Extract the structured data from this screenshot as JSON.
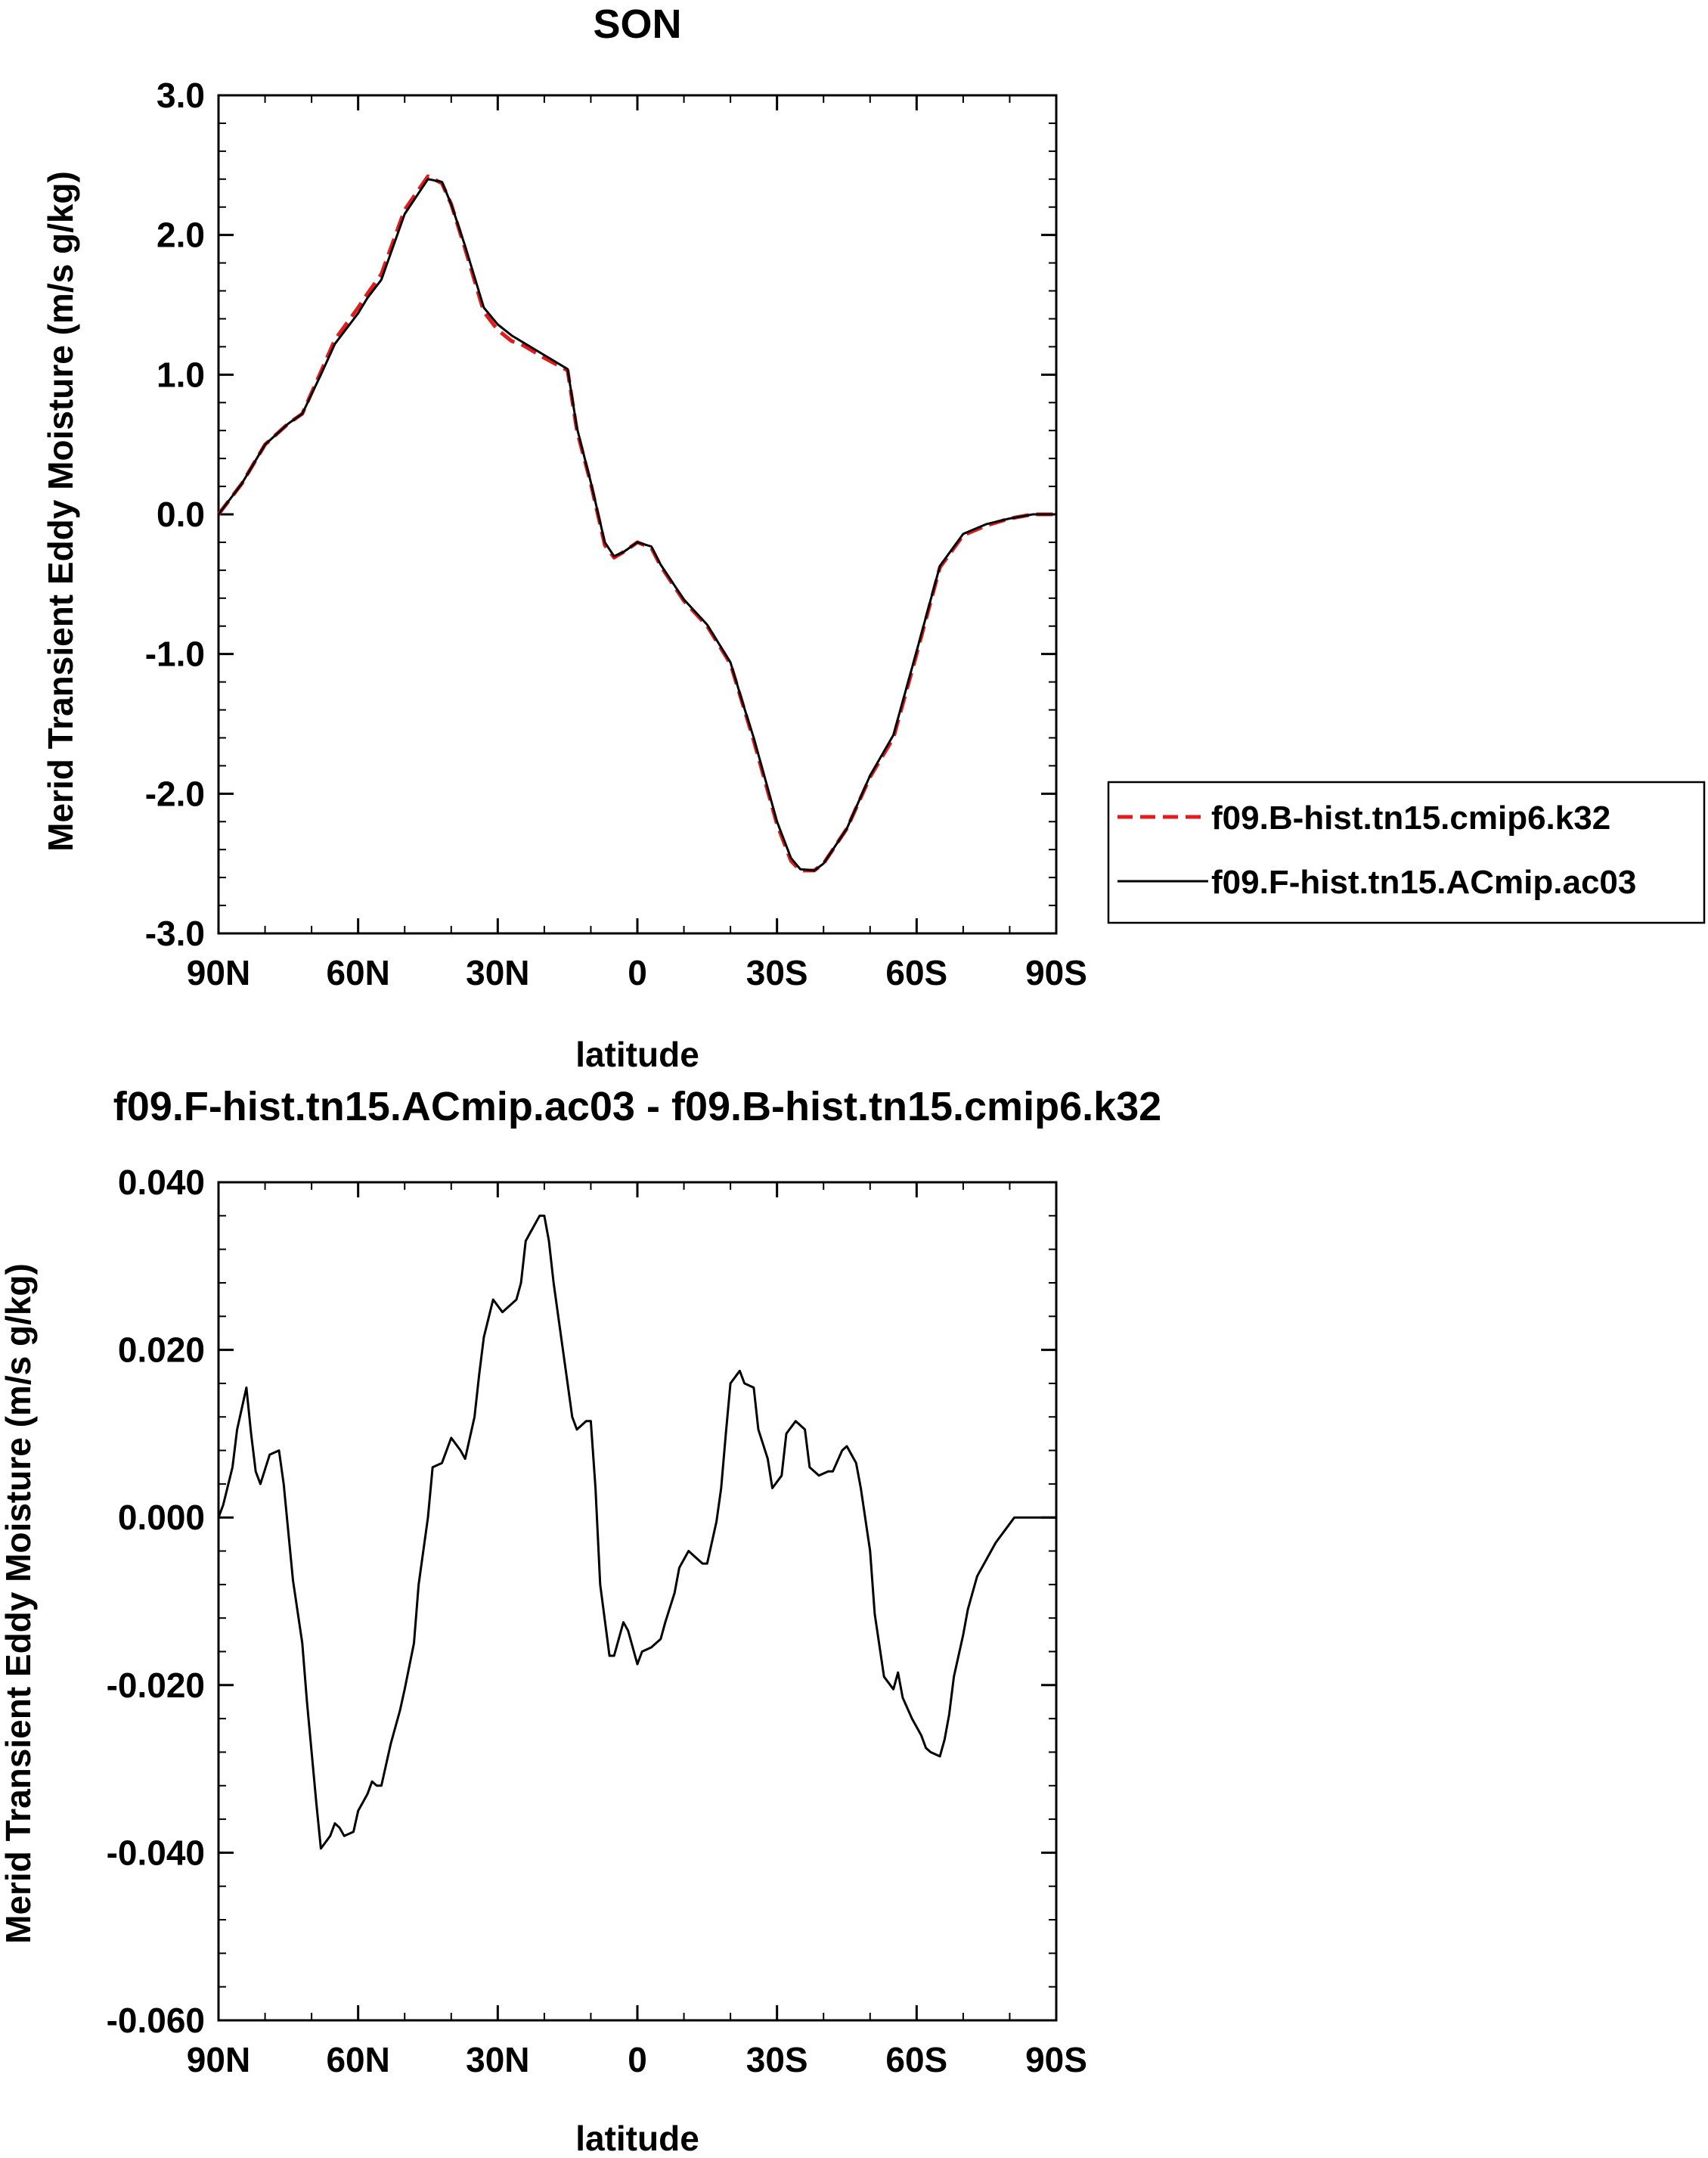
{
  "colors": {
    "series_b": "#e41a1c",
    "series_f": "#000000",
    "background": "#ffffff"
  },
  "chart_data": [
    {
      "type": "line",
      "title": "SON",
      "xlabel": "latitude",
      "ylabel": "Merid Transient Eddy Moisture (m/s g/kg)",
      "x_unit": "degrees latitude (positive = N, negative = S)",
      "xlim": [
        90,
        -90
      ],
      "ylim": [
        -3.0,
        3.0
      ],
      "x_ticks": [
        {
          "value": 90,
          "label": "90N"
        },
        {
          "value": 60,
          "label": "60N"
        },
        {
          "value": 30,
          "label": "30N"
        },
        {
          "value": 0,
          "label": "0"
        },
        {
          "value": -30,
          "label": "30S"
        },
        {
          "value": -60,
          "label": "60S"
        },
        {
          "value": -90,
          "label": "90S"
        }
      ],
      "y_ticks": [
        {
          "value": 3.0,
          "label": "3.0"
        },
        {
          "value": 2.0,
          "label": "2.0"
        },
        {
          "value": 1.0,
          "label": "1.0"
        },
        {
          "value": 0.0,
          "label": "0.0"
        },
        {
          "value": -1.0,
          "label": "-1.0"
        },
        {
          "value": -2.0,
          "label": "-2.0"
        },
        {
          "value": -3.0,
          "label": "-3.0"
        }
      ],
      "grid": false,
      "legend_position": "right",
      "series": [
        {
          "name": "f09.B-hist.tn15.cmip6.k32",
          "color": "#e41a1c",
          "dash": "dashed",
          "x": [
            90,
            85,
            80,
            75,
            72,
            68,
            65,
            60,
            58,
            55,
            50,
            45,
            42,
            40,
            37,
            33,
            30,
            27,
            25,
            20,
            15,
            13,
            10,
            7,
            5,
            3,
            0,
            -3,
            -5,
            -8,
            -10,
            -15,
            -20,
            -23,
            -25,
            -30,
            -33,
            -35,
            -38,
            -40,
            -45,
            -50,
            -55,
            -60,
            -65,
            -70,
            -75,
            -80,
            -85,
            -90
          ],
          "y": [
            0.0,
            0.22,
            0.5,
            0.65,
            0.72,
            1.02,
            1.25,
            1.48,
            1.58,
            1.72,
            2.18,
            2.42,
            2.37,
            2.22,
            1.9,
            1.45,
            1.32,
            1.24,
            1.22,
            1.12,
            1.03,
            0.6,
            0.22,
            -0.22,
            -0.31,
            -0.27,
            -0.2,
            -0.24,
            -0.37,
            -0.52,
            -0.62,
            -0.8,
            -1.07,
            -1.4,
            -1.62,
            -2.22,
            -2.48,
            -2.55,
            -2.55,
            -2.5,
            -2.25,
            -1.88,
            -1.6,
            -1.0,
            -0.38,
            -0.15,
            -0.08,
            -0.03,
            0.0,
            0.0
          ]
        },
        {
          "name": "f09.F-hist.tn15.ACmip.ac03",
          "color": "#000000",
          "dash": "solid",
          "x": [
            90,
            85,
            80,
            75,
            72,
            68,
            65,
            60,
            58,
            55,
            50,
            45,
            42,
            40,
            37,
            33,
            30,
            27,
            25,
            20,
            15,
            13,
            10,
            7,
            5,
            3,
            0,
            -3,
            -5,
            -8,
            -10,
            -15,
            -20,
            -23,
            -25,
            -30,
            -33,
            -35,
            -38,
            -40,
            -45,
            -50,
            -55,
            -60,
            -65,
            -70,
            -75,
            -80,
            -85,
            -90
          ],
          "y": [
            0.0,
            0.22,
            0.5,
            0.65,
            0.72,
            1.0,
            1.22,
            1.44,
            1.55,
            1.68,
            2.15,
            2.4,
            2.38,
            2.22,
            1.92,
            1.48,
            1.36,
            1.28,
            1.24,
            1.14,
            1.04,
            0.62,
            0.23,
            -0.2,
            -0.3,
            -0.27,
            -0.2,
            -0.23,
            -0.36,
            -0.51,
            -0.61,
            -0.79,
            -1.06,
            -1.39,
            -1.6,
            -2.2,
            -2.46,
            -2.54,
            -2.55,
            -2.5,
            -2.25,
            -1.87,
            -1.58,
            -0.98,
            -0.37,
            -0.14,
            -0.07,
            -0.03,
            0.0,
            0.0
          ]
        }
      ]
    },
    {
      "type": "line",
      "title": "f09.F-hist.tn15.ACmip.ac03 - f09.B-hist.tn15.cmip6.k32",
      "xlabel": "latitude",
      "ylabel": "Merid Transient Eddy Moisture (m/s g/kg)",
      "x_unit": "degrees latitude (positive = N, negative = S)",
      "xlim": [
        90,
        -90
      ],
      "ylim": [
        -0.06,
        0.04
      ],
      "x_ticks": [
        {
          "value": 90,
          "label": "90N"
        },
        {
          "value": 60,
          "label": "60N"
        },
        {
          "value": 30,
          "label": "30N"
        },
        {
          "value": 0,
          "label": "0"
        },
        {
          "value": -30,
          "label": "30S"
        },
        {
          "value": -60,
          "label": "60S"
        },
        {
          "value": -90,
          "label": "90S"
        }
      ],
      "y_ticks": [
        {
          "value": 0.04,
          "label": "0.040"
        },
        {
          "value": 0.02,
          "label": "0.020"
        },
        {
          "value": 0.0,
          "label": "0.000"
        },
        {
          "value": -0.02,
          "label": "-0.020"
        },
        {
          "value": -0.04,
          "label": "-0.040"
        },
        {
          "value": -0.06,
          "label": "-0.060"
        }
      ],
      "grid": false,
      "series": [
        {
          "color": "#000000",
          "dash": "solid",
          "x": [
            90,
            89,
            87,
            86,
            84,
            83,
            82,
            81,
            79,
            77,
            76,
            74,
            72,
            71,
            69,
            68,
            66,
            65,
            64,
            63,
            61,
            60,
            58,
            57,
            56,
            55,
            53,
            51,
            50,
            48,
            47,
            45,
            44,
            42,
            40,
            38,
            37,
            35,
            34,
            33,
            31,
            29,
            28,
            26,
            25,
            24,
            23,
            21,
            20,
            19,
            18,
            16,
            15,
            14,
            13,
            11,
            10,
            9,
            8,
            6,
            5,
            3,
            2,
            0,
            -1,
            -3,
            -5,
            -6,
            -8,
            -9,
            -11,
            -12,
            -14,
            -15,
            -17,
            -18,
            -19,
            -20,
            -22,
            -23,
            -25,
            -26,
            -28,
            -29,
            -31,
            -32,
            -34,
            -36,
            -37,
            -39,
            -41,
            -42,
            -44,
            -45,
            -47,
            -48,
            -50,
            -51,
            -53,
            -55,
            -56,
            -57,
            -59,
            -61,
            -62,
            -63,
            -65,
            -66,
            -67,
            -68,
            -70,
            -71,
            -72,
            -73,
            -75,
            -77,
            -79,
            -81,
            -83,
            -85,
            -87,
            -89,
            -90
          ],
          "y": [
            0.0,
            0.0015,
            0.006,
            0.0105,
            0.0155,
            0.01,
            0.0055,
            0.004,
            0.0075,
            0.008,
            0.004,
            -0.0075,
            -0.015,
            -0.022,
            -0.034,
            -0.0395,
            -0.038,
            -0.0365,
            -0.037,
            -0.038,
            -0.0375,
            -0.035,
            -0.033,
            -0.0315,
            -0.032,
            -0.032,
            -0.027,
            -0.023,
            -0.0205,
            -0.015,
            -0.008,
            0.0,
            0.006,
            0.0065,
            0.0095,
            0.008,
            0.007,
            0.012,
            0.017,
            0.0215,
            0.026,
            0.0245,
            0.025,
            0.026,
            0.028,
            0.033,
            0.034,
            0.036,
            0.036,
            0.033,
            0.028,
            0.02,
            0.016,
            0.012,
            0.0105,
            0.0115,
            0.0115,
            0.0035,
            -0.008,
            -0.0165,
            -0.0165,
            -0.0125,
            -0.0135,
            -0.0175,
            -0.016,
            -0.0155,
            -0.0145,
            -0.0125,
            -0.009,
            -0.006,
            -0.004,
            -0.0045,
            -0.0055,
            -0.0055,
            -0.0005,
            0.0035,
            0.01,
            0.016,
            0.0175,
            0.016,
            0.0155,
            0.0105,
            0.007,
            0.0035,
            0.005,
            0.01,
            0.0115,
            0.0105,
            0.006,
            0.005,
            0.0055,
            0.0055,
            0.008,
            0.0085,
            0.0065,
            0.0035,
            -0.004,
            -0.0115,
            -0.019,
            -0.0205,
            -0.0185,
            -0.0215,
            -0.024,
            -0.026,
            -0.0275,
            -0.028,
            -0.0285,
            -0.0265,
            -0.0235,
            -0.019,
            -0.014,
            -0.011,
            -0.009,
            -0.007,
            -0.005,
            -0.003,
            -0.0015,
            0.0,
            0.0,
            0.0,
            0.0,
            0.0,
            0.0
          ]
        }
      ]
    }
  ]
}
